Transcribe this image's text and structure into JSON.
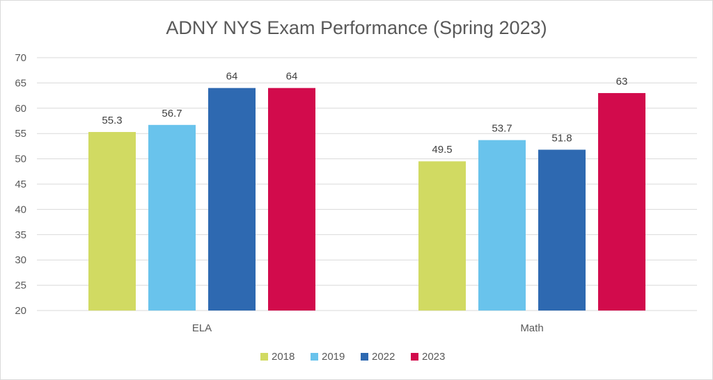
{
  "chart_data": {
    "type": "bar",
    "title": "ADNY NYS Exam Performance (Spring 2023)",
    "xlabel": "",
    "ylabel": "",
    "categories": [
      "ELA",
      "Math"
    ],
    "series": [
      {
        "name": "2018",
        "color": "#d1da62",
        "values": [
          55.3,
          49.5
        ]
      },
      {
        "name": "2019",
        "color": "#69c3ec",
        "values": [
          56.7,
          53.7
        ]
      },
      {
        "name": "2022",
        "color": "#2e69b1",
        "values": [
          64,
          51.8
        ]
      },
      {
        "name": "2023",
        "color": "#d20b4c",
        "values": [
          64,
          63
        ]
      }
    ],
    "ylim": [
      20,
      70
    ],
    "yticks": [
      20,
      25,
      30,
      35,
      40,
      45,
      50,
      55,
      60,
      65,
      70
    ],
    "grid": true,
    "legend": "bottom"
  }
}
